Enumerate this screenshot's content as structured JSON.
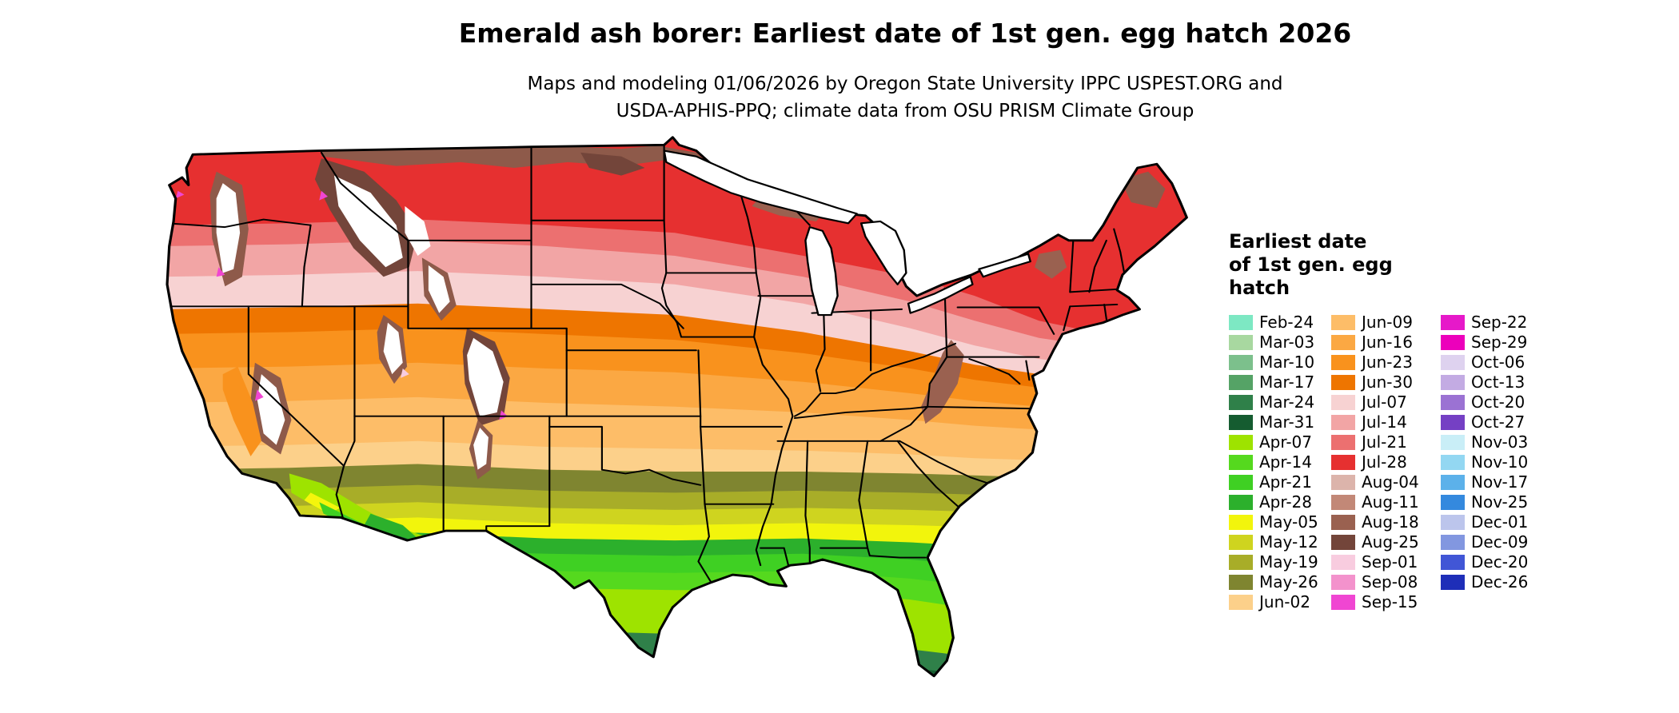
{
  "title": "Emerald ash borer: Earliest date of 1st gen. egg hatch 2026",
  "subtitle_line1": "Maps and modeling 01/06/2026 by Oregon State University IPPC USPEST.ORG and",
  "subtitle_line2": "USDA-APHIS-PPQ; climate data from OSU PRISM Climate Group",
  "legend": {
    "title_lines": [
      "Earliest date",
      "of 1st gen. egg",
      "hatch"
    ],
    "columns": [
      {
        "entries": [
          {
            "label": "Feb-24",
            "color": "#7de8c3"
          },
          {
            "label": "Mar-03",
            "color": "#a8d8a0"
          },
          {
            "label": "Mar-10",
            "color": "#7cc08c"
          },
          {
            "label": "Mar-17",
            "color": "#55a366"
          },
          {
            "label": "Mar-24",
            "color": "#2f8049"
          },
          {
            "label": "Mar-31",
            "color": "#155c30"
          },
          {
            "label": "Apr-07",
            "color": "#9ee300"
          },
          {
            "label": "Apr-14",
            "color": "#55d91e"
          },
          {
            "label": "Apr-21",
            "color": "#3fd023"
          },
          {
            "label": "Apr-28",
            "color": "#2cb02c"
          },
          {
            "label": "May-05",
            "color": "#f2f50c"
          },
          {
            "label": "May-12",
            "color": "#cfd41f"
          },
          {
            "label": "May-19",
            "color": "#a8ad28"
          },
          {
            "label": "May-26",
            "color": "#7f8530"
          },
          {
            "label": "Jun-02",
            "color": "#fcd08a"
          }
        ]
      },
      {
        "entries": [
          {
            "label": "Jun-09",
            "color": "#fdbd68"
          },
          {
            "label": "Jun-16",
            "color": "#fba843"
          },
          {
            "label": "Jun-23",
            "color": "#f9921d"
          },
          {
            "label": "Jun-30",
            "color": "#ee7500"
          },
          {
            "label": "Jul-07",
            "color": "#f7d2d2"
          },
          {
            "label": "Jul-14",
            "color": "#f2a5a5"
          },
          {
            "label": "Jul-21",
            "color": "#ec7070"
          },
          {
            "label": "Jul-28",
            "color": "#e63030"
          },
          {
            "label": "Aug-04",
            "color": "#dcb4ab"
          },
          {
            "label": "Aug-11",
            "color": "#c28877"
          },
          {
            "label": "Aug-18",
            "color": "#9a6150"
          },
          {
            "label": "Aug-25",
            "color": "#73453a"
          },
          {
            "label": "Sep-01",
            "color": "#f8ccdf"
          },
          {
            "label": "Sep-08",
            "color": "#f392cc"
          },
          {
            "label": "Sep-15",
            "color": "#f046d2"
          }
        ]
      },
      {
        "entries": [
          {
            "label": "Sep-22",
            "color": "#e619c9"
          },
          {
            "label": "Sep-29",
            "color": "#ec00bb"
          },
          {
            "label": "Oct-06",
            "color": "#ded2ef"
          },
          {
            "label": "Oct-13",
            "color": "#c3abe3"
          },
          {
            "label": "Oct-20",
            "color": "#9b72d3"
          },
          {
            "label": "Oct-27",
            "color": "#7540c4"
          },
          {
            "label": "Nov-03",
            "color": "#c9eef7"
          },
          {
            "label": "Nov-10",
            "color": "#93d7f2"
          },
          {
            "label": "Nov-17",
            "color": "#5cb1ea"
          },
          {
            "label": "Nov-25",
            "color": "#3489de"
          },
          {
            "label": "Dec-01",
            "color": "#bcc5ec"
          },
          {
            "label": "Dec-09",
            "color": "#8297e0"
          },
          {
            "label": "Dec-20",
            "color": "#4156d6"
          },
          {
            "label": "Dec-26",
            "color": "#1e2eb8"
          }
        ]
      }
    ]
  }
}
